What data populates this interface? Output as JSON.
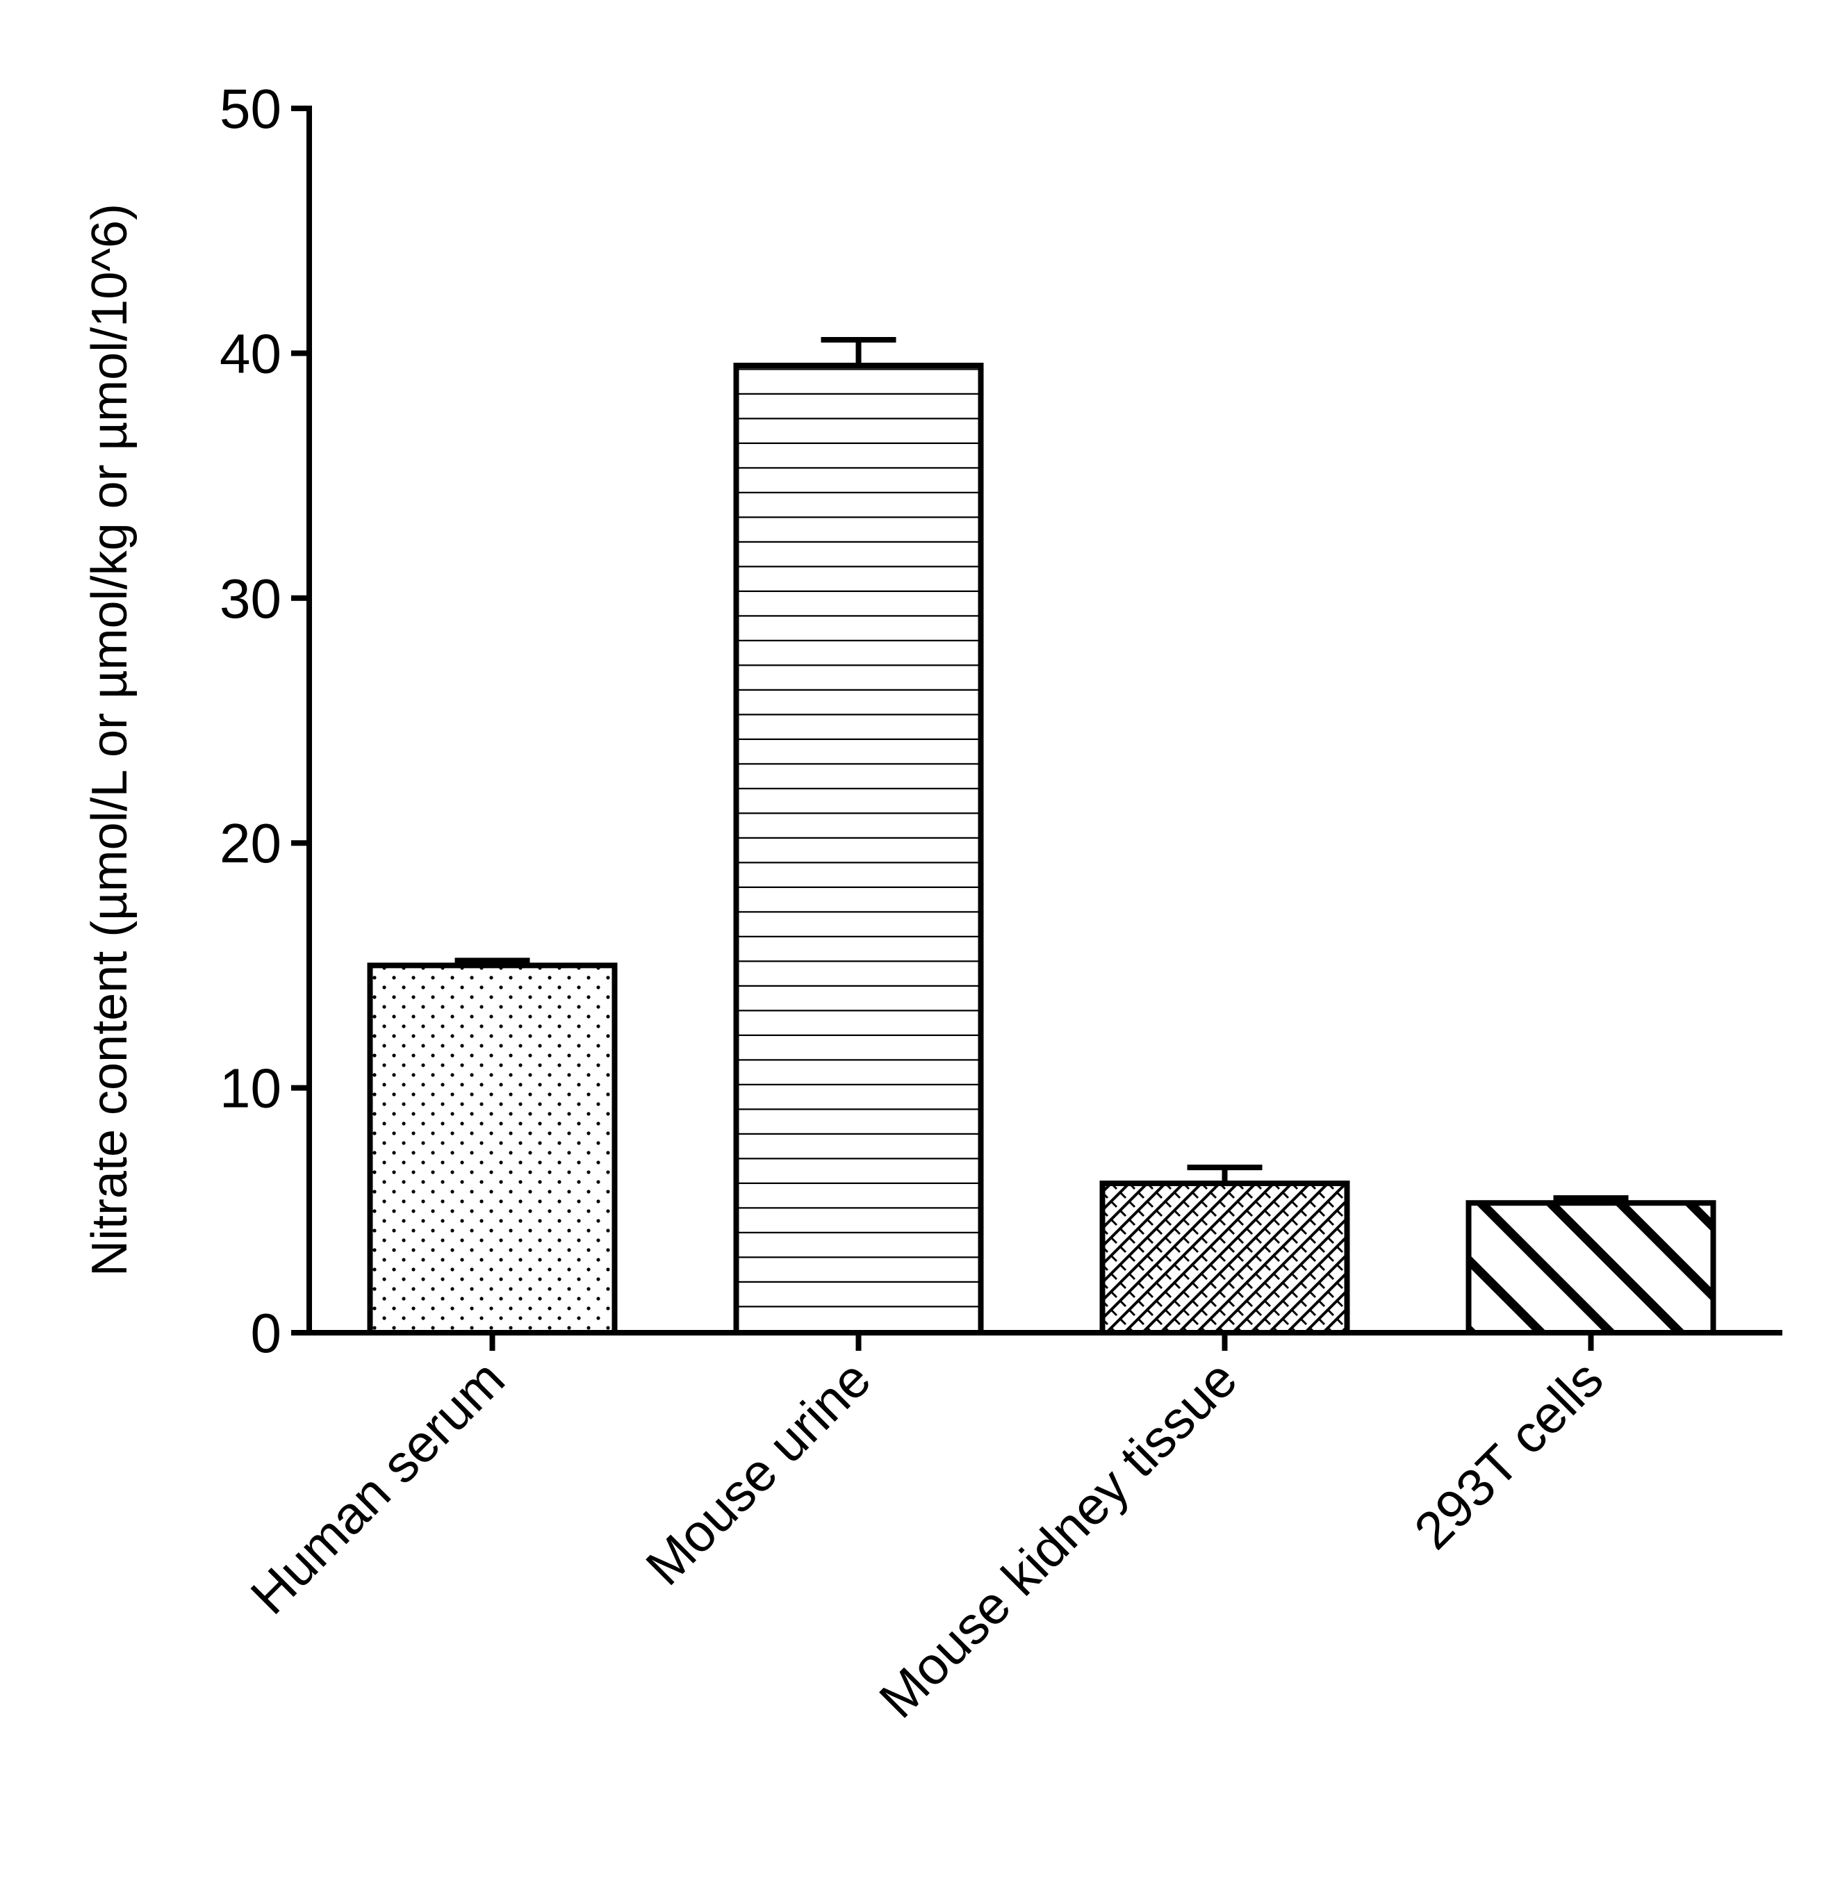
{
  "chart_data": {
    "type": "bar",
    "title": "",
    "xlabel": "",
    "ylabel": "Nitrate content (µmol/L or µmol/kg or µmol/10^6)",
    "categories": [
      "Human serum",
      "Mouse urine",
      "Mouse kidney tissue",
      "293T cells"
    ],
    "values": [
      15.0,
      39.5,
      6.1,
      5.3
    ],
    "error_upper": [
      0.2,
      1.05,
      0.65,
      0.2
    ],
    "patterns": [
      "dots",
      "horizontal-lines",
      "crosshatch",
      "diagonal-stripes"
    ],
    "ylim": [
      0,
      50
    ],
    "yticks": [
      0,
      10,
      20,
      30,
      40,
      50
    ],
    "ytick_labels": [
      "0",
      "10",
      "20",
      "30",
      "40",
      "50"
    ],
    "grid": false,
    "legend": false,
    "colors": {
      "stroke": "#000000",
      "fill": "#ffffff"
    }
  }
}
